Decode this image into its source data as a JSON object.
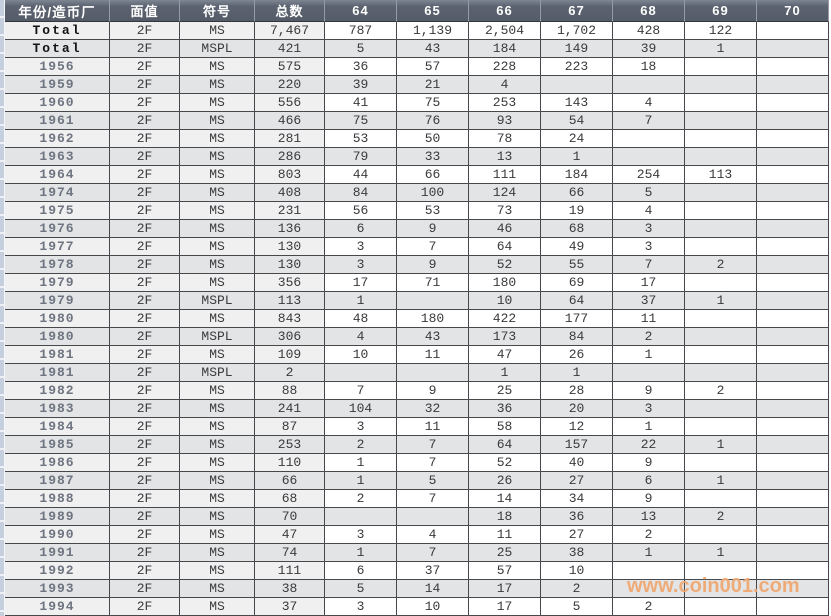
{
  "watermark": "www.coin001.com",
  "colors": {
    "header_bg": "#5c6370",
    "header_text": "#ffffff",
    "row_light": "#ffffff",
    "row_light_left": "#f0f0f1",
    "row_dark": "#e3e4e6",
    "grid_line": "#46484c",
    "year_text": "#6e7480",
    "total_text": "#141414",
    "data_text": "#3a3a3c",
    "gutter": "#c6cfdd",
    "watermark": "#f0a76e"
  },
  "table": {
    "headers": [
      "年份/造币厂",
      "面值",
      "符号",
      "总数",
      "64",
      "65",
      "66",
      "67",
      "68",
      "69",
      "70"
    ],
    "rows": [
      {
        "year": "Total",
        "denom": "2F",
        "symbol": "MS",
        "total": "7,467",
        "grades": [
          "787",
          "1,139",
          "2,504",
          "1,702",
          "428",
          "122",
          ""
        ]
      },
      {
        "year": "Total",
        "denom": "2F",
        "symbol": "MSPL",
        "total": "421",
        "grades": [
          "5",
          "43",
          "184",
          "149",
          "39",
          "1",
          ""
        ]
      },
      {
        "year": "1956",
        "denom": "2F",
        "symbol": "MS",
        "total": "575",
        "grades": [
          "36",
          "57",
          "228",
          "223",
          "18",
          "",
          ""
        ]
      },
      {
        "year": "1959",
        "denom": "2F",
        "symbol": "MS",
        "total": "220",
        "grades": [
          "39",
          "21",
          "4",
          "",
          "",
          "",
          ""
        ]
      },
      {
        "year": "1960",
        "denom": "2F",
        "symbol": "MS",
        "total": "556",
        "grades": [
          "41",
          "75",
          "253",
          "143",
          "4",
          "",
          ""
        ]
      },
      {
        "year": "1961",
        "denom": "2F",
        "symbol": "MS",
        "total": "466",
        "grades": [
          "75",
          "76",
          "93",
          "54",
          "7",
          "",
          ""
        ]
      },
      {
        "year": "1962",
        "denom": "2F",
        "symbol": "MS",
        "total": "281",
        "grades": [
          "53",
          "50",
          "78",
          "24",
          "",
          "",
          ""
        ]
      },
      {
        "year": "1963",
        "denom": "2F",
        "symbol": "MS",
        "total": "286",
        "grades": [
          "79",
          "33",
          "13",
          "1",
          "",
          "",
          ""
        ]
      },
      {
        "year": "1964",
        "denom": "2F",
        "symbol": "MS",
        "total": "803",
        "grades": [
          "44",
          "66",
          "111",
          "184",
          "254",
          "113",
          ""
        ]
      },
      {
        "year": "1974",
        "denom": "2F",
        "symbol": "MS",
        "total": "408",
        "grades": [
          "84",
          "100",
          "124",
          "66",
          "5",
          "",
          ""
        ]
      },
      {
        "year": "1975",
        "denom": "2F",
        "symbol": "MS",
        "total": "231",
        "grades": [
          "56",
          "53",
          "73",
          "19",
          "4",
          "",
          ""
        ]
      },
      {
        "year": "1976",
        "denom": "2F",
        "symbol": "MS",
        "total": "136",
        "grades": [
          "6",
          "9",
          "46",
          "68",
          "3",
          "",
          ""
        ]
      },
      {
        "year": "1977",
        "denom": "2F",
        "symbol": "MS",
        "total": "130",
        "grades": [
          "3",
          "7",
          "64",
          "49",
          "3",
          "",
          ""
        ]
      },
      {
        "year": "1978",
        "denom": "2F",
        "symbol": "MS",
        "total": "130",
        "grades": [
          "3",
          "9",
          "52",
          "55",
          "7",
          "2",
          ""
        ]
      },
      {
        "year": "1979",
        "denom": "2F",
        "symbol": "MS",
        "total": "356",
        "grades": [
          "17",
          "71",
          "180",
          "69",
          "17",
          "",
          ""
        ]
      },
      {
        "year": "1979",
        "denom": "2F",
        "symbol": "MSPL",
        "total": "113",
        "grades": [
          "1",
          "",
          "10",
          "64",
          "37",
          "1",
          ""
        ]
      },
      {
        "year": "1980",
        "denom": "2F",
        "symbol": "MS",
        "total": "843",
        "grades": [
          "48",
          "180",
          "422",
          "177",
          "11",
          "",
          ""
        ]
      },
      {
        "year": "1980",
        "denom": "2F",
        "symbol": "MSPL",
        "total": "306",
        "grades": [
          "4",
          "43",
          "173",
          "84",
          "2",
          "",
          ""
        ]
      },
      {
        "year": "1981",
        "denom": "2F",
        "symbol": "MS",
        "total": "109",
        "grades": [
          "10",
          "11",
          "47",
          "26",
          "1",
          "",
          ""
        ]
      },
      {
        "year": "1981",
        "denom": "2F",
        "symbol": "MSPL",
        "total": "2",
        "grades": [
          "",
          "",
          "1",
          "1",
          "",
          "",
          ""
        ]
      },
      {
        "year": "1982",
        "denom": "2F",
        "symbol": "MS",
        "total": "88",
        "grades": [
          "7",
          "9",
          "25",
          "28",
          "9",
          "2",
          ""
        ]
      },
      {
        "year": "1983",
        "denom": "2F",
        "symbol": "MS",
        "total": "241",
        "grades": [
          "104",
          "32",
          "36",
          "20",
          "3",
          "",
          ""
        ]
      },
      {
        "year": "1984",
        "denom": "2F",
        "symbol": "MS",
        "total": "87",
        "grades": [
          "3",
          "11",
          "58",
          "12",
          "1",
          "",
          ""
        ]
      },
      {
        "year": "1985",
        "denom": "2F",
        "symbol": "MS",
        "total": "253",
        "grades": [
          "2",
          "7",
          "64",
          "157",
          "22",
          "1",
          ""
        ]
      },
      {
        "year": "1986",
        "denom": "2F",
        "symbol": "MS",
        "total": "110",
        "grades": [
          "1",
          "7",
          "52",
          "40",
          "9",
          "",
          ""
        ]
      },
      {
        "year": "1987",
        "denom": "2F",
        "symbol": "MS",
        "total": "66",
        "grades": [
          "1",
          "5",
          "26",
          "27",
          "6",
          "1",
          ""
        ]
      },
      {
        "year": "1988",
        "denom": "2F",
        "symbol": "MS",
        "total": "68",
        "grades": [
          "2",
          "7",
          "14",
          "34",
          "9",
          "",
          ""
        ]
      },
      {
        "year": "1989",
        "denom": "2F",
        "symbol": "MS",
        "total": "70",
        "grades": [
          "",
          "",
          "18",
          "36",
          "13",
          "2",
          ""
        ]
      },
      {
        "year": "1990",
        "denom": "2F",
        "symbol": "MS",
        "total": "47",
        "grades": [
          "3",
          "4",
          "11",
          "27",
          "2",
          "",
          ""
        ]
      },
      {
        "year": "1991",
        "denom": "2F",
        "symbol": "MS",
        "total": "74",
        "grades": [
          "1",
          "7",
          "25",
          "38",
          "1",
          "1",
          ""
        ]
      },
      {
        "year": "1992",
        "denom": "2F",
        "symbol": "MS",
        "total": "111",
        "grades": [
          "6",
          "37",
          "57",
          "10",
          "",
          "",
          ""
        ]
      },
      {
        "year": "1993",
        "denom": "2F",
        "symbol": "MS",
        "total": "38",
        "grades": [
          "5",
          "14",
          "17",
          "2",
          "",
          "",
          ""
        ]
      },
      {
        "year": "1994",
        "denom": "2F",
        "symbol": "MS",
        "total": "37",
        "grades": [
          "3",
          "10",
          "17",
          "5",
          "2",
          "",
          ""
        ]
      }
    ]
  }
}
